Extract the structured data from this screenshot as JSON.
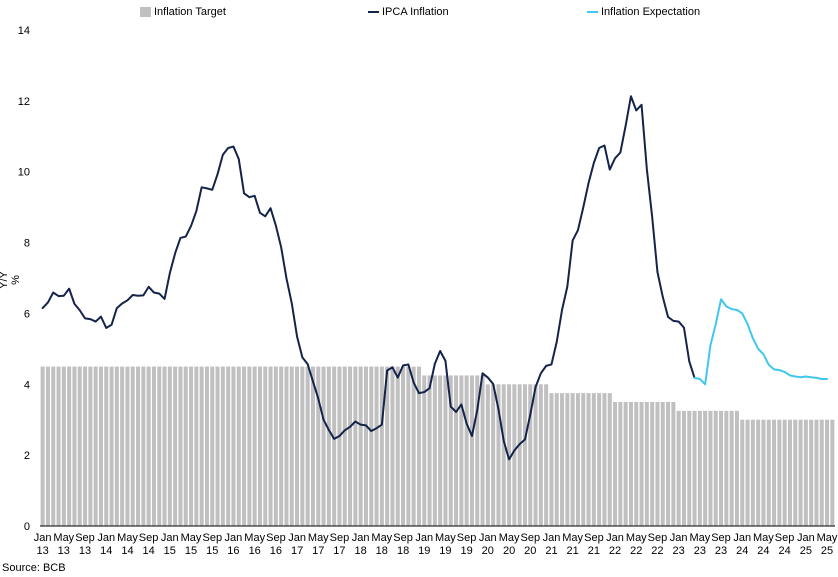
{
  "chart_data": {
    "type": "line",
    "title": "",
    "xlabel": "",
    "ylabel": "Y/Y %",
    "ylim": [
      0,
      14
    ],
    "yticks": [
      0,
      2,
      4,
      6,
      8,
      10,
      12,
      14
    ],
    "xlim": [
      "2013-01",
      "2025-06"
    ],
    "xticks": [
      {
        "m": "Jan",
        "y": "13"
      },
      {
        "m": "May",
        "y": "13"
      },
      {
        "m": "Sep",
        "y": "13"
      },
      {
        "m": "Jan",
        "y": "14"
      },
      {
        "m": "May",
        "y": "14"
      },
      {
        "m": "Sep",
        "y": "14"
      },
      {
        "m": "Jan",
        "y": "15"
      },
      {
        "m": "May",
        "y": "15"
      },
      {
        "m": "Sep",
        "y": "15"
      },
      {
        "m": "Jan",
        "y": "16"
      },
      {
        "m": "May",
        "y": "16"
      },
      {
        "m": "Sep",
        "y": "16"
      },
      {
        "m": "Jan",
        "y": "17"
      },
      {
        "m": "May",
        "y": "17"
      },
      {
        "m": "Sep",
        "y": "17"
      },
      {
        "m": "Jan",
        "y": "18"
      },
      {
        "m": "May",
        "y": "18"
      },
      {
        "m": "Sep",
        "y": "18"
      },
      {
        "m": "Jan",
        "y": "19"
      },
      {
        "m": "May",
        "y": "19"
      },
      {
        "m": "Sep",
        "y": "19"
      },
      {
        "m": "Jan",
        "y": "20"
      },
      {
        "m": "May",
        "y": "20"
      },
      {
        "m": "Sep",
        "y": "20"
      },
      {
        "m": "Jan",
        "y": "21"
      },
      {
        "m": "May",
        "y": "21"
      },
      {
        "m": "Sep",
        "y": "21"
      },
      {
        "m": "Jan",
        "y": "22"
      },
      {
        "m": "May",
        "y": "22"
      },
      {
        "m": "Sep",
        "y": "22"
      },
      {
        "m": "Jan",
        "y": "23"
      },
      {
        "m": "May",
        "y": "23"
      },
      {
        "m": "Sep",
        "y": "23"
      },
      {
        "m": "Jan",
        "y": "24"
      },
      {
        "m": "May",
        "y": "24"
      },
      {
        "m": "Sep",
        "y": "24"
      },
      {
        "m": "Jan",
        "y": "25"
      },
      {
        "m": "May",
        "y": "25"
      }
    ],
    "grid": false,
    "legend_position": "top",
    "legend": [
      {
        "name": "Inflation Target",
        "type": "bar",
        "color": "#c0c0c0"
      },
      {
        "name": "IPCA Inflation",
        "type": "line",
        "color": "#14234a"
      },
      {
        "name": "Inflation Expectation",
        "type": "line",
        "color": "#41c7ef"
      }
    ],
    "target": {
      "name": "Inflation Target",
      "color": "#c0c0c0",
      "segments": [
        {
          "start": "2013-01",
          "end": "2018-12",
          "value": 4.5
        },
        {
          "start": "2019-01",
          "end": "2019-12",
          "value": 4.25
        },
        {
          "start": "2020-01",
          "end": "2020-12",
          "value": 4.0
        },
        {
          "start": "2021-01",
          "end": "2021-12",
          "value": 3.75
        },
        {
          "start": "2022-01",
          "end": "2022-12",
          "value": 3.5
        },
        {
          "start": "2023-01",
          "end": "2023-12",
          "value": 3.25
        },
        {
          "start": "2024-01",
          "end": "2025-06",
          "value": 3.0
        }
      ]
    },
    "series": [
      {
        "name": "IPCA Inflation",
        "color": "#14234a",
        "points": [
          [
            "2013-01",
            6.15
          ],
          [
            "2013-02",
            6.31
          ],
          [
            "2013-03",
            6.59
          ],
          [
            "2013-04",
            6.49
          ],
          [
            "2013-05",
            6.5
          ],
          [
            "2013-06",
            6.7
          ],
          [
            "2013-07",
            6.27
          ],
          [
            "2013-08",
            6.09
          ],
          [
            "2013-09",
            5.86
          ],
          [
            "2013-10",
            5.84
          ],
          [
            "2013-11",
            5.77
          ],
          [
            "2013-12",
            5.91
          ],
          [
            "2014-01",
            5.59
          ],
          [
            "2014-02",
            5.68
          ],
          [
            "2014-03",
            6.15
          ],
          [
            "2014-04",
            6.28
          ],
          [
            "2014-05",
            6.37
          ],
          [
            "2014-06",
            6.52
          ],
          [
            "2014-07",
            6.5
          ],
          [
            "2014-08",
            6.51
          ],
          [
            "2014-09",
            6.75
          ],
          [
            "2014-10",
            6.59
          ],
          [
            "2014-11",
            6.56
          ],
          [
            "2014-12",
            6.41
          ],
          [
            "2015-01",
            7.14
          ],
          [
            "2015-02",
            7.7
          ],
          [
            "2015-03",
            8.13
          ],
          [
            "2015-04",
            8.17
          ],
          [
            "2015-05",
            8.47
          ],
          [
            "2015-06",
            8.89
          ],
          [
            "2015-07",
            9.56
          ],
          [
            "2015-08",
            9.53
          ],
          [
            "2015-09",
            9.49
          ],
          [
            "2015-10",
            9.93
          ],
          [
            "2015-11",
            10.48
          ],
          [
            "2015-12",
            10.67
          ],
          [
            "2016-01",
            10.71
          ],
          [
            "2016-02",
            10.36
          ],
          [
            "2016-03",
            9.39
          ],
          [
            "2016-04",
            9.28
          ],
          [
            "2016-05",
            9.32
          ],
          [
            "2016-06",
            8.84
          ],
          [
            "2016-07",
            8.74
          ],
          [
            "2016-08",
            8.97
          ],
          [
            "2016-09",
            8.48
          ],
          [
            "2016-10",
            7.87
          ],
          [
            "2016-11",
            6.99
          ],
          [
            "2016-12",
            6.29
          ],
          [
            "2017-01",
            5.35
          ],
          [
            "2017-02",
            4.76
          ],
          [
            "2017-03",
            4.57
          ],
          [
            "2017-04",
            4.08
          ],
          [
            "2017-05",
            3.6
          ],
          [
            "2017-06",
            3.0
          ],
          [
            "2017-07",
            2.71
          ],
          [
            "2017-08",
            2.46
          ],
          [
            "2017-09",
            2.54
          ],
          [
            "2017-10",
            2.7
          ],
          [
            "2017-11",
            2.8
          ],
          [
            "2017-12",
            2.95
          ],
          [
            "2018-01",
            2.86
          ],
          [
            "2018-02",
            2.84
          ],
          [
            "2018-03",
            2.68
          ],
          [
            "2018-04",
            2.76
          ],
          [
            "2018-05",
            2.86
          ],
          [
            "2018-06",
            4.39
          ],
          [
            "2018-07",
            4.48
          ],
          [
            "2018-08",
            4.19
          ],
          [
            "2018-09",
            4.53
          ],
          [
            "2018-10",
            4.56
          ],
          [
            "2018-11",
            4.05
          ],
          [
            "2018-12",
            3.75
          ],
          [
            "2019-01",
            3.78
          ],
          [
            "2019-02",
            3.89
          ],
          [
            "2019-03",
            4.58
          ],
          [
            "2019-04",
            4.94
          ],
          [
            "2019-05",
            4.66
          ],
          [
            "2019-06",
            3.37
          ],
          [
            "2019-07",
            3.22
          ],
          [
            "2019-08",
            3.43
          ],
          [
            "2019-09",
            2.89
          ],
          [
            "2019-10",
            2.54
          ],
          [
            "2019-11",
            3.27
          ],
          [
            "2019-12",
            4.31
          ],
          [
            "2020-01",
            4.19
          ],
          [
            "2020-02",
            4.01
          ],
          [
            "2020-03",
            3.3
          ],
          [
            "2020-04",
            2.4
          ],
          [
            "2020-05",
            1.88
          ],
          [
            "2020-06",
            2.13
          ],
          [
            "2020-07",
            2.31
          ],
          [
            "2020-08",
            2.44
          ],
          [
            "2020-09",
            3.14
          ],
          [
            "2020-10",
            3.92
          ],
          [
            "2020-11",
            4.31
          ],
          [
            "2020-12",
            4.52
          ],
          [
            "2021-01",
            4.56
          ],
          [
            "2021-02",
            5.2
          ],
          [
            "2021-03",
            6.1
          ],
          [
            "2021-04",
            6.76
          ],
          [
            "2021-05",
            8.06
          ],
          [
            "2021-06",
            8.35
          ],
          [
            "2021-07",
            8.99
          ],
          [
            "2021-08",
            9.68
          ],
          [
            "2021-09",
            10.25
          ],
          [
            "2021-10",
            10.67
          ],
          [
            "2021-11",
            10.74
          ],
          [
            "2021-12",
            10.06
          ],
          [
            "2022-01",
            10.38
          ],
          [
            "2022-02",
            10.54
          ],
          [
            "2022-03",
            11.3
          ],
          [
            "2022-04",
            12.13
          ],
          [
            "2022-05",
            11.73
          ],
          [
            "2022-06",
            11.89
          ],
          [
            "2022-07",
            10.07
          ],
          [
            "2022-08",
            8.73
          ],
          [
            "2022-09",
            7.17
          ],
          [
            "2022-10",
            6.47
          ],
          [
            "2022-11",
            5.9
          ],
          [
            "2022-12",
            5.79
          ],
          [
            "2023-01",
            5.77
          ],
          [
            "2023-02",
            5.6
          ],
          [
            "2023-03",
            4.65
          ],
          [
            "2023-04",
            4.18
          ]
        ]
      },
      {
        "name": "Inflation Expectation",
        "color": "#41c7ef",
        "points": [
          [
            "2023-04",
            4.18
          ],
          [
            "2023-05",
            4.15
          ],
          [
            "2023-06",
            4.0
          ],
          [
            "2023-07",
            5.1
          ],
          [
            "2023-08",
            5.7
          ],
          [
            "2023-09",
            6.4
          ],
          [
            "2023-10",
            6.2
          ],
          [
            "2023-11",
            6.12
          ],
          [
            "2023-12",
            6.1
          ],
          [
            "2024-01",
            6.0
          ],
          [
            "2024-02",
            5.7
          ],
          [
            "2024-03",
            5.3
          ],
          [
            "2024-04",
            5.0
          ],
          [
            "2024-05",
            4.85
          ],
          [
            "2024-06",
            4.55
          ],
          [
            "2024-07",
            4.42
          ],
          [
            "2024-08",
            4.4
          ],
          [
            "2024-09",
            4.35
          ],
          [
            "2024-10",
            4.25
          ],
          [
            "2024-11",
            4.22
          ],
          [
            "2024-12",
            4.2
          ],
          [
            "2025-01",
            4.22
          ],
          [
            "2025-02",
            4.2
          ],
          [
            "2025-03",
            4.18
          ],
          [
            "2025-04",
            4.15
          ],
          [
            "2025-05",
            4.15
          ]
        ]
      }
    ],
    "source": "Source: BCB"
  }
}
